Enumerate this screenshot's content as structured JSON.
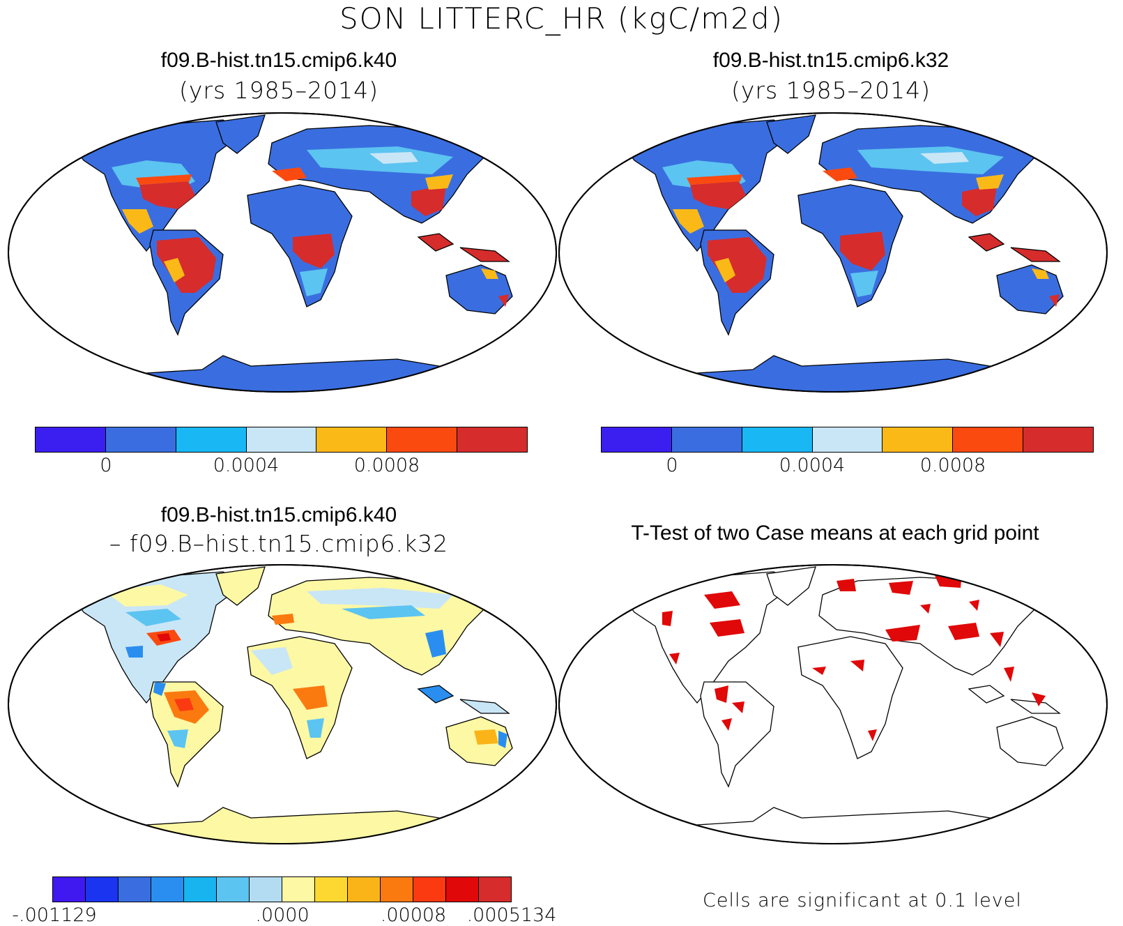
{
  "figure_title": "SON LITTERC_HR (kgC/m2d)",
  "panels": [
    {
      "title": "f09.B-hist.tn15.cmip6.k40",
      "subtitle": "(yrs 1985–2014)"
    },
    {
      "title": "f09.B-hist.tn15.cmip6.k32",
      "subtitle": "(yrs 1985–2014)"
    },
    {
      "title": "f09.B-hist.tn15.cmip6.k40",
      "subtitle": "– f09.B–hist.tn15.cmip6.k32"
    },
    {
      "title": "T-Test of two Case means at each grid point",
      "subtitle": ""
    }
  ],
  "colorbar_top": {
    "colors": [
      "#3b1ff0",
      "#3a6ee0",
      "#19b8f5",
      "#c9e6f6",
      "#fbb918",
      "#fb4a10",
      "#d62c2c"
    ],
    "labels": [
      "0",
      "0.0004",
      "0.0008"
    ]
  },
  "colorbar_diff": {
    "colors": [
      "#4018f0",
      "#1a34f0",
      "#3a6ee0",
      "#2a8ef0",
      "#18b4f0",
      "#5cc4f0",
      "#b3dcf2",
      "#fdf8a4",
      "#fdd830",
      "#fbb418",
      "#fb7a10",
      "#fb3a12",
      "#e00808",
      "#d62c2c"
    ],
    "labels": [
      "-.001129",
      ".0000",
      ".00008",
      ".0005134"
    ]
  },
  "ttest_note": "Cells are significant at 0.1 level",
  "map_colors": {
    "land_base": "#3a6ee0",
    "tropics": "#d62c2c",
    "diff_base": "#fdf8a4",
    "significant": "#e00808"
  }
}
